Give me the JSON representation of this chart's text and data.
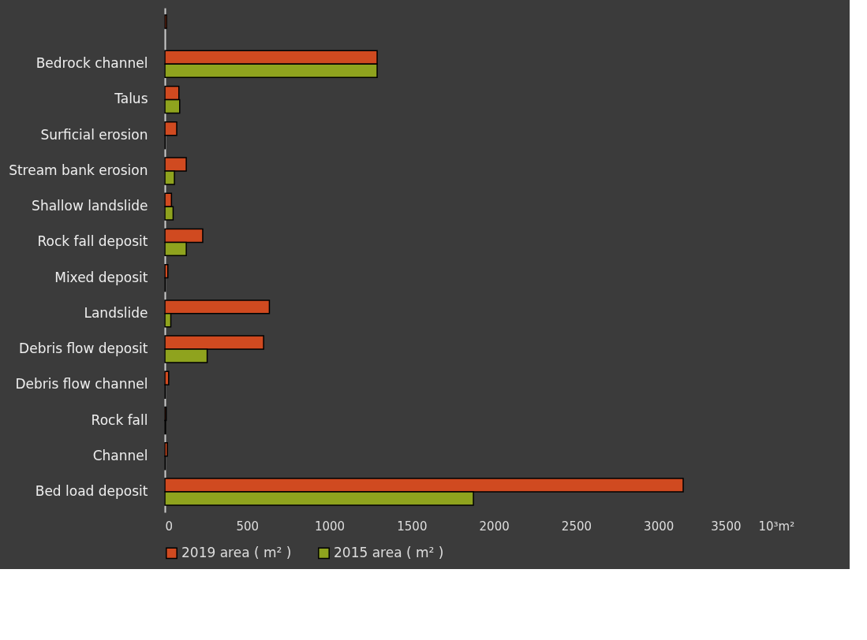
{
  "chart_data": {
    "type": "bar",
    "orientation": "horizontal",
    "categories": [
      null,
      "Bedrock channel",
      "Talus",
      "Surficial erosion",
      "Stream bank erosion",
      "Shallow landslide",
      "Rock fall deposit",
      "Mixed deposit",
      "Landslide",
      "Debris flow deposit",
      "Debris flow channel",
      "Rock fall",
      "Channel",
      "Bed load deposit"
    ],
    "series": [
      {
        "name": "2019 area ( m² )",
        "color": "#d04a20",
        "values": [
          10,
          1290,
          85,
          72,
          130,
          40,
          230,
          18,
          635,
          600,
          23,
          8,
          15,
          3150
        ]
      },
      {
        "name": "2015 area ( m² )",
        "color": "#8fa31e",
        "values": [
          null,
          1290,
          90,
          2,
          58,
          50,
          130,
          3,
          36,
          257,
          3,
          5,
          3,
          1875
        ]
      }
    ],
    "xlim": [
      0,
      3500
    ],
    "xticks": [
      0,
      500,
      1000,
      1500,
      2000,
      2500,
      3000,
      3500
    ],
    "xlabel": "10³m²",
    "grid": false,
    "legend": "bottom"
  }
}
